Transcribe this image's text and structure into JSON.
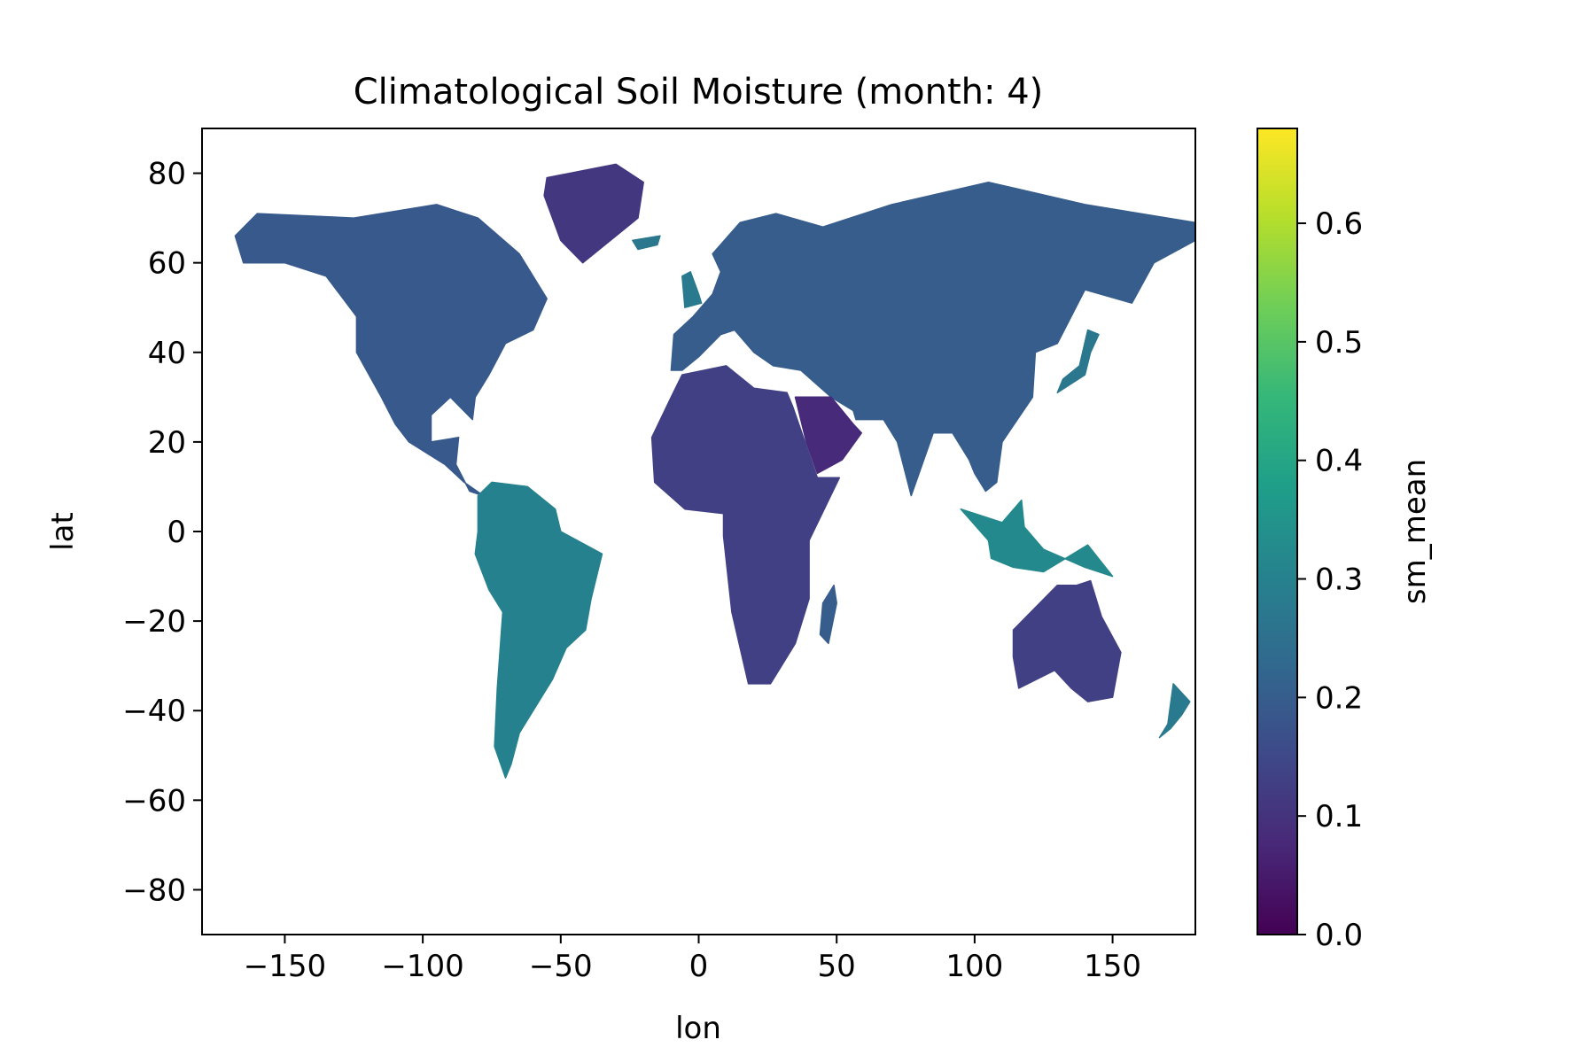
{
  "chart_data": {
    "type": "heatmap",
    "title": "Climatological Soil Moisture (month: 4)",
    "xlabel": "lon",
    "ylabel": "lat",
    "xlim": [
      -180,
      180
    ],
    "ylim": [
      -90,
      90
    ],
    "xticks": [
      -150,
      -100,
      -50,
      0,
      50,
      100,
      150
    ],
    "xtick_labels": [
      "−150",
      "−100",
      "−50",
      "0",
      "50",
      "100",
      "150"
    ],
    "yticks": [
      80,
      60,
      40,
      20,
      0,
      -20,
      -40,
      -60,
      -80
    ],
    "ytick_labels": [
      "80",
      "60",
      "40",
      "20",
      "0",
      "−20",
      "−40",
      "−60",
      "−80"
    ],
    "colorbar": {
      "label": "sm_mean",
      "colormap": "viridis",
      "range": [
        0.0,
        0.68
      ],
      "ticks": [
        0.0,
        0.1,
        0.2,
        0.3,
        0.4,
        0.5,
        0.6
      ],
      "tick_labels": [
        "0.0",
        "0.1",
        "0.2",
        "0.3",
        "0.4",
        "0.5",
        "0.6"
      ],
      "colors": [
        "#440154",
        "#482878",
        "#3e4989",
        "#31688e",
        "#26828e",
        "#1f9e89",
        "#35b779",
        "#6ece58",
        "#b5de2b",
        "#fde725"
      ]
    },
    "regions": [
      {
        "name": "North America",
        "value": 0.19,
        "lon_lat": [
          [
            -168,
            66
          ],
          [
            -160,
            71
          ],
          [
            -125,
            70
          ],
          [
            -95,
            73
          ],
          [
            -80,
            70
          ],
          [
            -65,
            62
          ],
          [
            -55,
            52
          ],
          [
            -60,
            45
          ],
          [
            -70,
            42
          ],
          [
            -76,
            35
          ],
          [
            -81,
            30
          ],
          [
            -82,
            25
          ],
          [
            -90,
            30
          ],
          [
            -97,
            26
          ],
          [
            -97,
            20
          ],
          [
            -87,
            21
          ],
          [
            -88,
            15
          ],
          [
            -83,
            9
          ],
          [
            -78,
            8
          ],
          [
            -85,
            11
          ],
          [
            -92,
            15
          ],
          [
            -105,
            20
          ],
          [
            -110,
            24
          ],
          [
            -115,
            30
          ],
          [
            -124,
            40
          ],
          [
            -124,
            48
          ],
          [
            -135,
            57
          ],
          [
            -150,
            60
          ],
          [
            -165,
            60
          ]
        ]
      },
      {
        "name": "Greenland",
        "value": 0.11,
        "lon_lat": [
          [
            -55,
            79
          ],
          [
            -30,
            82
          ],
          [
            -20,
            78
          ],
          [
            -22,
            70
          ],
          [
            -42,
            60
          ],
          [
            -50,
            65
          ],
          [
            -56,
            75
          ]
        ]
      },
      {
        "name": "South America",
        "value": 0.3,
        "lon_lat": [
          [
            -80,
            8
          ],
          [
            -75,
            11
          ],
          [
            -62,
            10
          ],
          [
            -52,
            5
          ],
          [
            -50,
            0
          ],
          [
            -35,
            -5
          ],
          [
            -39,
            -15
          ],
          [
            -41,
            -22
          ],
          [
            -48,
            -26
          ],
          [
            -53,
            -33
          ],
          [
            -58,
            -38
          ],
          [
            -65,
            -45
          ],
          [
            -68,
            -52
          ],
          [
            -70,
            -55
          ],
          [
            -74,
            -48
          ],
          [
            -73,
            -35
          ],
          [
            -71,
            -18
          ],
          [
            -76,
            -13
          ],
          [
            -81,
            -5
          ],
          [
            -80,
            0
          ]
        ]
      },
      {
        "name": "Europe and Asia",
        "value": 0.2,
        "lon_lat": [
          [
            -10,
            36
          ],
          [
            -9,
            44
          ],
          [
            -2,
            48
          ],
          [
            5,
            53
          ],
          [
            8,
            58
          ],
          [
            5,
            62
          ],
          [
            15,
            69
          ],
          [
            28,
            71
          ],
          [
            45,
            68
          ],
          [
            70,
            73
          ],
          [
            105,
            78
          ],
          [
            140,
            73
          ],
          [
            180,
            69
          ],
          [
            180,
            65
          ],
          [
            165,
            60
          ],
          [
            157,
            51
          ],
          [
            140,
            54
          ],
          [
            130,
            42
          ],
          [
            122,
            40
          ],
          [
            121,
            30
          ],
          [
            110,
            20
          ],
          [
            108,
            11
          ],
          [
            104,
            9
          ],
          [
            100,
            13
          ],
          [
            98,
            16
          ],
          [
            92,
            22
          ],
          [
            85,
            22
          ],
          [
            77,
            8
          ],
          [
            72,
            20
          ],
          [
            67,
            25
          ],
          [
            57,
            25
          ],
          [
            56,
            27
          ],
          [
            48,
            30
          ],
          [
            37,
            36
          ],
          [
            27,
            37
          ],
          [
            20,
            40
          ],
          [
            13,
            45
          ],
          [
            8,
            44
          ],
          [
            0,
            39
          ],
          [
            -6,
            36
          ]
        ]
      },
      {
        "name": "Arabia",
        "value": 0.08,
        "lon_lat": [
          [
            35,
            30
          ],
          [
            48,
            30
          ],
          [
            56,
            24
          ],
          [
            59,
            22
          ],
          [
            52,
            16
          ],
          [
            43,
            13
          ],
          [
            39,
            20
          ]
        ]
      },
      {
        "name": "Africa",
        "value": 0.13,
        "lon_lat": [
          [
            -17,
            21
          ],
          [
            -10,
            30
          ],
          [
            -6,
            35
          ],
          [
            10,
            37
          ],
          [
            20,
            32
          ],
          [
            32,
            31
          ],
          [
            34,
            28
          ],
          [
            43,
            12
          ],
          [
            51,
            12
          ],
          [
            40,
            -2
          ],
          [
            40,
            -15
          ],
          [
            35,
            -25
          ],
          [
            26,
            -34
          ],
          [
            18,
            -34
          ],
          [
            12,
            -18
          ],
          [
            9,
            -1
          ],
          [
            9,
            4
          ],
          [
            -5,
            5
          ],
          [
            -16,
            11
          ]
        ]
      },
      {
        "name": "Madagascar",
        "value": 0.2,
        "lon_lat": [
          [
            49,
            -12
          ],
          [
            50,
            -16
          ],
          [
            47,
            -25
          ],
          [
            44,
            -23
          ],
          [
            45,
            -16
          ]
        ]
      },
      {
        "name": "Indonesia",
        "value": 0.32,
        "lon_lat": [
          [
            95,
            5
          ],
          [
            105,
            -2
          ],
          [
            106,
            -6
          ],
          [
            114,
            -8
          ],
          [
            125,
            -9
          ],
          [
            141,
            -3
          ],
          [
            150,
            -10
          ],
          [
            140,
            -8
          ],
          [
            125,
            -4
          ],
          [
            118,
            1
          ],
          [
            117,
            7
          ],
          [
            110,
            2
          ]
        ]
      },
      {
        "name": "Australia",
        "value": 0.13,
        "lon_lat": [
          [
            114,
            -22
          ],
          [
            122,
            -17
          ],
          [
            130,
            -12
          ],
          [
            137,
            -12
          ],
          [
            142,
            -11
          ],
          [
            146,
            -19
          ],
          [
            153,
            -27
          ],
          [
            150,
            -37
          ],
          [
            141,
            -38
          ],
          [
            135,
            -35
          ],
          [
            129,
            -31
          ],
          [
            116,
            -35
          ],
          [
            114,
            -28
          ]
        ]
      },
      {
        "name": "New Zealand",
        "value": 0.28,
        "lon_lat": [
          [
            172,
            -34
          ],
          [
            178,
            -38
          ],
          [
            175,
            -41
          ],
          [
            171,
            -44
          ],
          [
            167,
            -46
          ],
          [
            170,
            -43
          ]
        ]
      },
      {
        "name": "Japan",
        "value": 0.27,
        "lon_lat": [
          [
            130,
            31
          ],
          [
            140,
            35
          ],
          [
            142,
            40
          ],
          [
            145,
            44
          ],
          [
            141,
            45
          ],
          [
            138,
            37
          ],
          [
            132,
            34
          ]
        ]
      },
      {
        "name": "United Kingdom",
        "value": 0.28,
        "lon_lat": [
          [
            -5,
            50
          ],
          [
            1,
            51
          ],
          [
            0,
            53
          ],
          [
            -3,
            58
          ],
          [
            -6,
            57
          ]
        ]
      },
      {
        "name": "Iceland",
        "value": 0.27,
        "lon_lat": [
          [
            -24,
            65
          ],
          [
            -14,
            66
          ],
          [
            -15,
            64
          ],
          [
            -22,
            63
          ]
        ]
      }
    ]
  }
}
